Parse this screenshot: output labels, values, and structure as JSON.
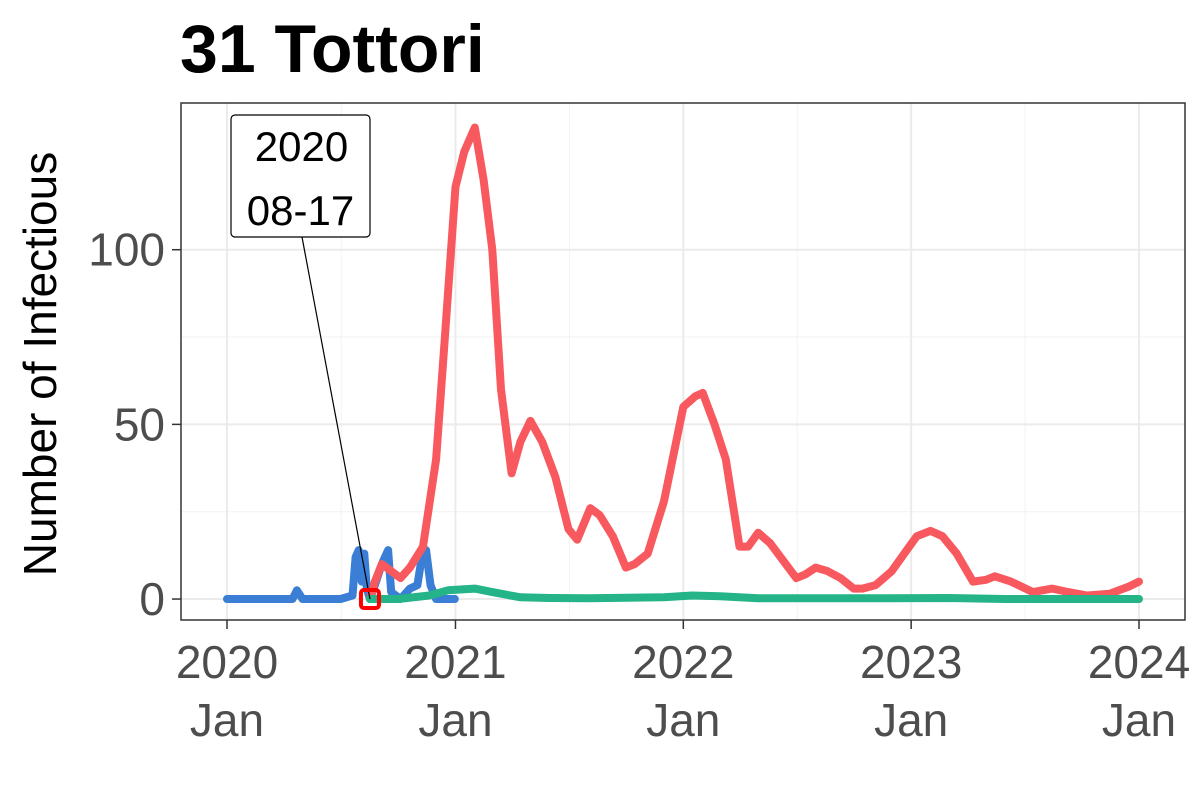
{
  "chart_data": {
    "type": "line",
    "title": "31 Tottori",
    "xlabel": "",
    "ylabel": "Number of Infectious",
    "xlim": [
      "2020-01-01",
      "2024-01-01"
    ],
    "ylim": [
      -6,
      142
    ],
    "x_ticks": [
      {
        "date": "2020-01-01",
        "year": "2020",
        "month": "Jan"
      },
      {
        "date": "2021-01-01",
        "year": "2021",
        "month": "Jan"
      },
      {
        "date": "2022-01-01",
        "year": "2022",
        "month": "Jan"
      },
      {
        "date": "2023-01-01",
        "year": "2023",
        "month": "Jan"
      },
      {
        "date": "2024-01-01",
        "year": "2024",
        "month": "Jan"
      }
    ],
    "y_ticks": [
      {
        "value": 0,
        "label": "0"
      },
      {
        "value": 50,
        "label": "50"
      },
      {
        "value": 100,
        "label": "100"
      }
    ],
    "grid": true,
    "legend": "none",
    "series": [
      {
        "color": "#3a7fd5",
        "points": [
          [
            "2020-01-01",
            0
          ],
          [
            "2020-04-15",
            0
          ],
          [
            "2020-04-22",
            2.5
          ],
          [
            "2020-05-01",
            0
          ],
          [
            "2020-07-01",
            0
          ],
          [
            "2020-07-20",
            1
          ],
          [
            "2020-07-25",
            12
          ],
          [
            "2020-07-30",
            14
          ],
          [
            "2020-08-04",
            5
          ],
          [
            "2020-08-08",
            13
          ],
          [
            "2020-08-12",
            3
          ],
          [
            "2020-08-17",
            0
          ],
          [
            "2020-08-25",
            4
          ],
          [
            "2020-09-05",
            10
          ],
          [
            "2020-09-15",
            14
          ],
          [
            "2020-09-20",
            2
          ],
          [
            "2020-10-05",
            0
          ],
          [
            "2020-10-20",
            3
          ],
          [
            "2020-11-01",
            4
          ],
          [
            "2020-11-08",
            12
          ],
          [
            "2020-11-15",
            14
          ],
          [
            "2020-11-22",
            4
          ],
          [
            "2020-12-01",
            0
          ],
          [
            "2020-12-31",
            0
          ]
        ]
      },
      {
        "color": "#f8595e",
        "points": [
          [
            "2020-08-17",
            0
          ],
          [
            "2020-08-25",
            5
          ],
          [
            "2020-09-05",
            10
          ],
          [
            "2020-09-20",
            8
          ],
          [
            "2020-10-05",
            6
          ],
          [
            "2020-10-20",
            9
          ],
          [
            "2020-11-10",
            15
          ],
          [
            "2020-12-01",
            40
          ],
          [
            "2020-12-15",
            75
          ],
          [
            "2021-01-01",
            118
          ],
          [
            "2021-01-15",
            128
          ],
          [
            "2021-02-01",
            135
          ],
          [
            "2021-02-15",
            120
          ],
          [
            "2021-03-01",
            100
          ],
          [
            "2021-03-15",
            60
          ],
          [
            "2021-04-01",
            36
          ],
          [
            "2021-04-15",
            45
          ],
          [
            "2021-05-01",
            51
          ],
          [
            "2021-05-20",
            45
          ],
          [
            "2021-06-10",
            35
          ],
          [
            "2021-07-01",
            20
          ],
          [
            "2021-07-15",
            17
          ],
          [
            "2021-08-05",
            26
          ],
          [
            "2021-08-20",
            24
          ],
          [
            "2021-09-10",
            18
          ],
          [
            "2021-10-01",
            9
          ],
          [
            "2021-10-15",
            10
          ],
          [
            "2021-11-05",
            13
          ],
          [
            "2021-12-01",
            28
          ],
          [
            "2022-01-01",
            55
          ],
          [
            "2022-01-20",
            58
          ],
          [
            "2022-02-01",
            59
          ],
          [
            "2022-02-20",
            50
          ],
          [
            "2022-03-10",
            40
          ],
          [
            "2022-04-01",
            15
          ],
          [
            "2022-04-15",
            15
          ],
          [
            "2022-05-01",
            19
          ],
          [
            "2022-05-20",
            16
          ],
          [
            "2022-06-10",
            11
          ],
          [
            "2022-07-01",
            6
          ],
          [
            "2022-07-15",
            7
          ],
          [
            "2022-08-01",
            9
          ],
          [
            "2022-08-20",
            8
          ],
          [
            "2022-09-10",
            6
          ],
          [
            "2022-10-01",
            3
          ],
          [
            "2022-10-15",
            3
          ],
          [
            "2022-11-05",
            4
          ],
          [
            "2022-12-01",
            8
          ],
          [
            "2022-12-25",
            14
          ],
          [
            "2023-01-10",
            18
          ],
          [
            "2023-02-01",
            19.5
          ],
          [
            "2023-02-20",
            18
          ],
          [
            "2023-03-15",
            13
          ],
          [
            "2023-04-10",
            5
          ],
          [
            "2023-05-01",
            5.5
          ],
          [
            "2023-05-15",
            6.5
          ],
          [
            "2023-06-10",
            5
          ],
          [
            "2023-07-15",
            2
          ],
          [
            "2023-08-15",
            3
          ],
          [
            "2023-09-10",
            2
          ],
          [
            "2023-10-10",
            1
          ],
          [
            "2023-11-15",
            1.5
          ],
          [
            "2023-12-15",
            3.5
          ],
          [
            "2024-01-01",
            5
          ]
        ]
      },
      {
        "color": "#24b487",
        "points": [
          [
            "2020-08-17",
            0
          ],
          [
            "2020-10-01",
            0
          ],
          [
            "2020-11-20",
            1
          ],
          [
            "2020-12-20",
            2.5
          ],
          [
            "2021-02-01",
            3
          ],
          [
            "2021-03-01",
            2
          ],
          [
            "2021-04-15",
            0.5
          ],
          [
            "2021-06-01",
            0.3
          ],
          [
            "2021-08-01",
            0.2
          ],
          [
            "2021-12-01",
            0.5
          ],
          [
            "2022-01-15",
            1
          ],
          [
            "2022-03-01",
            0.8
          ],
          [
            "2022-05-01",
            0.2
          ],
          [
            "2022-12-01",
            0.2
          ],
          [
            "2023-03-01",
            0.3
          ],
          [
            "2023-06-01",
            0
          ],
          [
            "2024-01-01",
            0
          ]
        ]
      }
    ],
    "annotations": [
      {
        "date": "2020-08-17",
        "value": 0,
        "line1": "2020",
        "line2": "08-17",
        "marker_color": "#ff0000"
      }
    ]
  }
}
